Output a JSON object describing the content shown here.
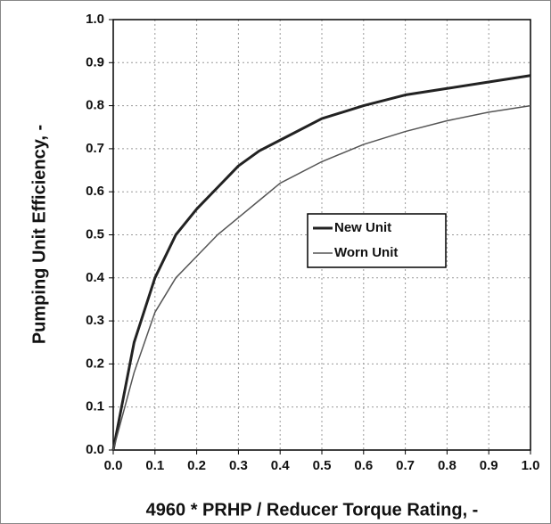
{
  "chart_data": {
    "type": "line",
    "xlabel": "4960 * PRHP / Reducer Torque Rating, -",
    "ylabel": "Pumping Unit Efficiency, -",
    "x": [
      0,
      0.05,
      0.1,
      0.15,
      0.2,
      0.25,
      0.3,
      0.35,
      0.4,
      0.5,
      0.6,
      0.7,
      0.8,
      0.9,
      1.0
    ],
    "series": [
      {
        "name": "New Unit",
        "color": "#222222",
        "values": [
          0,
          0.25,
          0.4,
          0.5,
          0.56,
          0.61,
          0.66,
          0.695,
          0.72,
          0.77,
          0.8,
          0.825,
          0.84,
          0.855,
          0.87
        ]
      },
      {
        "name": "Worn Unit",
        "color": "#555555",
        "values": [
          0,
          0.18,
          0.32,
          0.4,
          0.45,
          0.5,
          0.54,
          0.58,
          0.62,
          0.67,
          0.71,
          0.74,
          0.765,
          0.785,
          0.8
        ]
      }
    ],
    "xlim": [
      0,
      1
    ],
    "ylim": [
      0,
      1
    ],
    "xticks": [
      {
        "value": 0,
        "label": "0.0"
      },
      0.1,
      0.2,
      0.3,
      0.4,
      0.5,
      0.6,
      0.7,
      0.8,
      0.9,
      {
        "value": 1,
        "label": "1.0"
      }
    ],
    "yticks": [
      {
        "value": 0,
        "label": "0.0"
      },
      0.1,
      0.2,
      0.3,
      0.4,
      0.5,
      0.6,
      0.7,
      0.8,
      0.9,
      {
        "value": 1,
        "label": "1.0"
      }
    ],
    "grid": true,
    "legend": "center-right"
  }
}
